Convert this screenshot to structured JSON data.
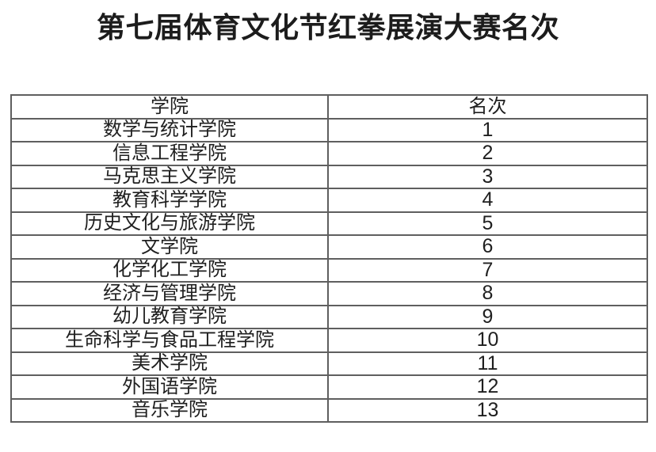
{
  "page": {
    "title": "第七届体育文化节红拳展演大赛名次"
  },
  "table": {
    "headers": [
      "学院",
      "名次"
    ],
    "rows": [
      {
        "college": "数学与统计学院",
        "rank": "1"
      },
      {
        "college": "信息工程学院",
        "rank": "2"
      },
      {
        "college": "马克思主义学院",
        "rank": "3"
      },
      {
        "college": "教育科学学院",
        "rank": "4"
      },
      {
        "college": "历史文化与旅游学院",
        "rank": "5"
      },
      {
        "college": "文学院",
        "rank": "6"
      },
      {
        "college": "化学化工学院",
        "rank": "7"
      },
      {
        "college": "经济与管理学院",
        "rank": "8"
      },
      {
        "college": "幼儿教育学院",
        "rank": "9"
      },
      {
        "college": "生命科学与食品工程学院",
        "rank": "10"
      },
      {
        "college": "美术学院",
        "rank": "11"
      },
      {
        "college": "外国语学院",
        "rank": "12"
      },
      {
        "college": "音乐学院",
        "rank": "13"
      }
    ]
  }
}
